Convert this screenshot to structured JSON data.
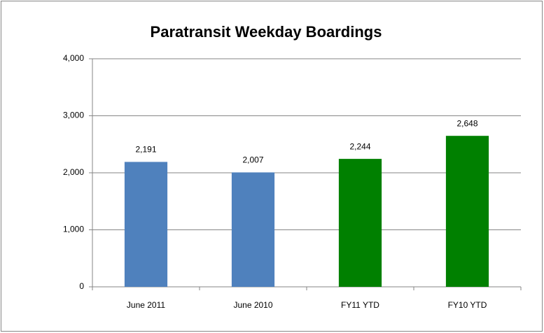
{
  "chart_data": {
    "type": "bar",
    "title": "Paratransit Weekday Boardings",
    "categories": [
      "June 2011",
      "June 2010",
      "FY11 YTD",
      "FY10 YTD"
    ],
    "values": [
      2191,
      2007,
      2244,
      2648
    ],
    "value_labels": [
      "2,191",
      "2,007",
      "2,244",
      "2,648"
    ],
    "colors": [
      "#4f81bd",
      "#4f81bd",
      "#008000",
      "#008000"
    ],
    "ylim": [
      0,
      4000
    ],
    "yticks": [
      0,
      {
        "value": 1000,
        "label": "1,000"
      },
      {
        "value": 2000,
        "label": "2,000"
      },
      {
        "value": 3000,
        "label": "3,000"
      },
      {
        "value": 4000,
        "label": "4,000"
      }
    ],
    "grid": true
  }
}
